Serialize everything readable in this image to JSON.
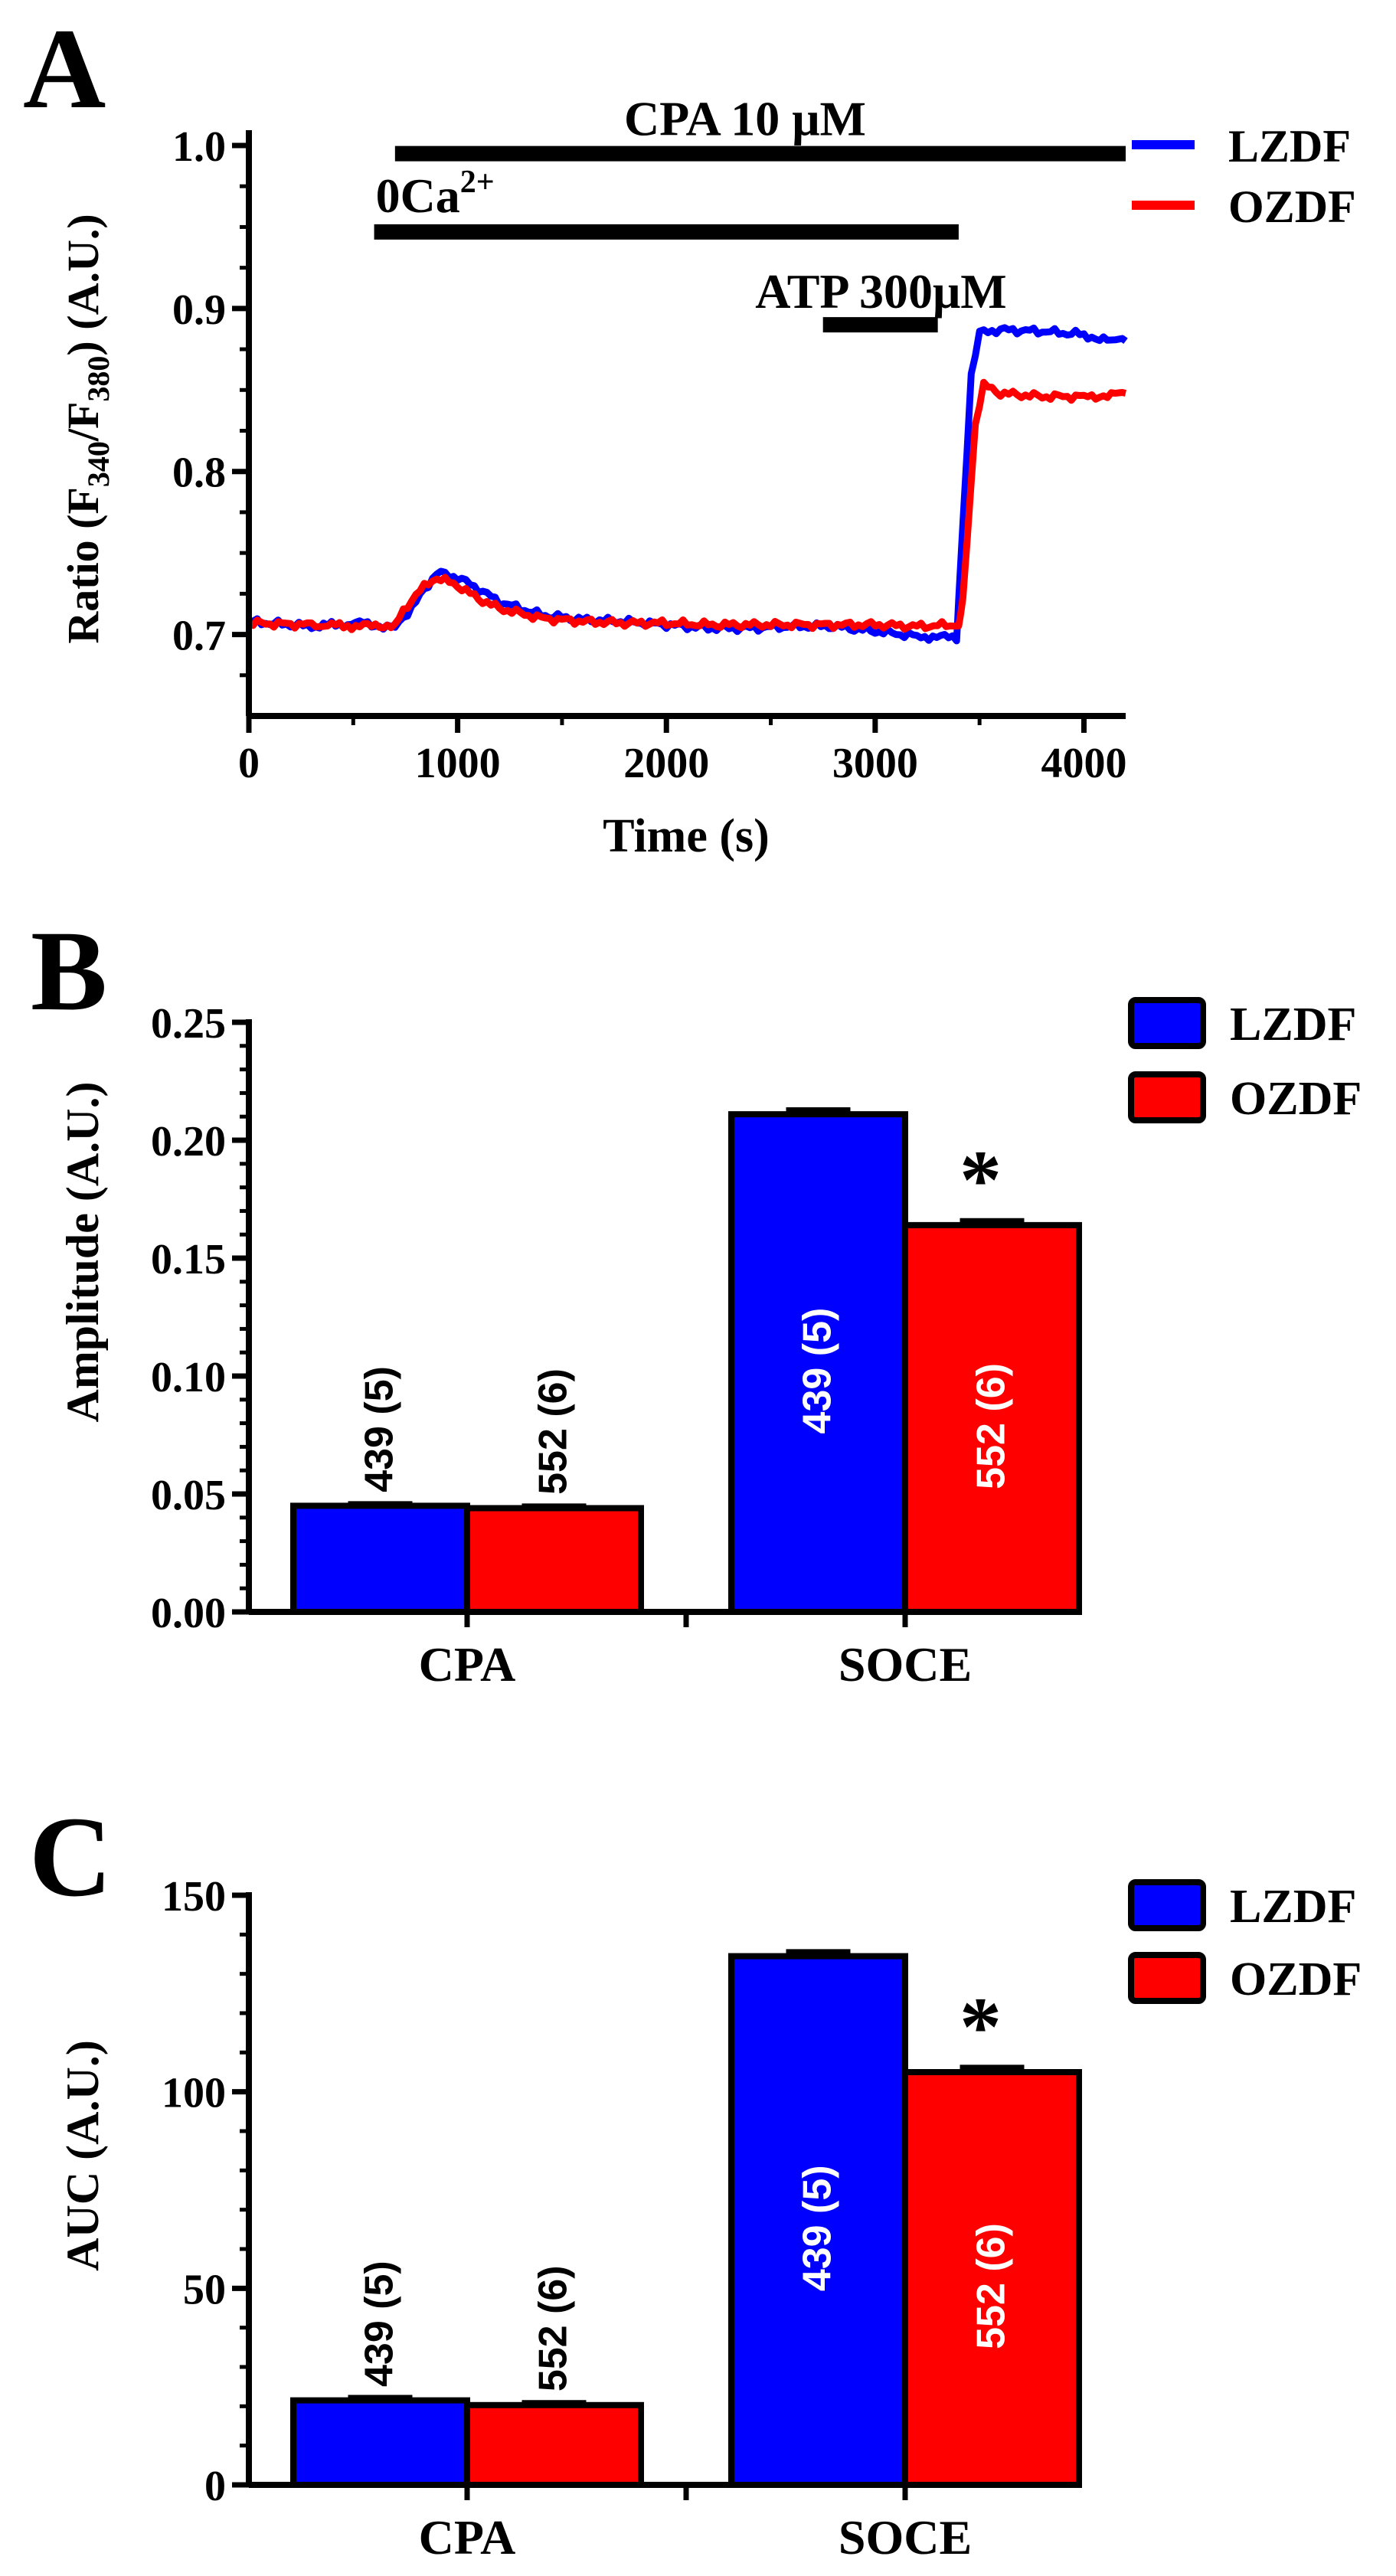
{
  "colors": {
    "lzdf": "#0000ff",
    "ozdf": "#ff0000",
    "axis": "#000000",
    "bar_label_inside": "#ffffff"
  },
  "legend": {
    "lzdf": "LZDF",
    "ozdf": "OZDF"
  },
  "chart_data": [
    {
      "panel_letter": "A",
      "type": "line",
      "xlabel": "Time (s)",
      "ylabel": {
        "main": "Ratio (F",
        "sub1": "340",
        "mid": "/F",
        "sub2": "380",
        "end": ") (A.U.)"
      },
      "xlim": [
        0,
        4200
      ],
      "ylim": [
        0.65,
        1.0
      ],
      "xticks": [
        0,
        1000,
        2000,
        3000,
        4000
      ],
      "xtick_labels": [
        "0",
        "1000",
        "2000",
        "3000",
        "4000"
      ],
      "yticks": [
        0.7,
        0.8,
        0.9,
        1.0
      ],
      "ytick_labels": [
        "0.7",
        "0.8",
        "0.9",
        "1.0"
      ],
      "annotations": {
        "cpa": {
          "label_main": "CPA 10 ",
          "label_mu": "μ",
          "label_unit": "M",
          "start": 700,
          "end": 4200,
          "level": 0.995
        },
        "zero_ca": {
          "label_main": "0Ca",
          "label_sup": "2+",
          "start": 600,
          "end": 3400,
          "level": 0.947
        },
        "atp": {
          "label_main": "ATP ",
          "label_num": "300",
          "label_mu": "μ",
          "label_unit": "M",
          "start": 2750,
          "end": 3300,
          "level": 0.89
        }
      },
      "series": [
        {
          "name": "LZDF",
          "x": [
            0,
            300,
            550,
            700,
            800,
            900,
            1000,
            1100,
            1200,
            1400,
            1600,
            1800,
            2000,
            2200,
            2400,
            2600,
            2800,
            3000,
            3200,
            3390,
            3400,
            3460,
            3500,
            3600,
            3800,
            4000,
            4150,
            4200
          ],
          "y": [
            0.708,
            0.705,
            0.707,
            0.704,
            0.72,
            0.738,
            0.735,
            0.728,
            0.72,
            0.712,
            0.709,
            0.708,
            0.706,
            0.704,
            0.704,
            0.705,
            0.705,
            0.702,
            0.699,
            0.698,
            0.72,
            0.86,
            0.885,
            0.887,
            0.886,
            0.884,
            0.879,
            0.88
          ]
        },
        {
          "name": "OZDF",
          "x": [
            0,
            300,
            550,
            700,
            800,
            900,
            1000,
            1100,
            1200,
            1400,
            1600,
            1800,
            2000,
            2200,
            2400,
            2600,
            2800,
            3000,
            3200,
            3400,
            3420,
            3480,
            3520,
            3600,
            3800,
            4000,
            4150,
            4200
          ],
          "y": [
            0.707,
            0.706,
            0.705,
            0.706,
            0.725,
            0.735,
            0.73,
            0.722,
            0.716,
            0.71,
            0.708,
            0.707,
            0.707,
            0.706,
            0.706,
            0.706,
            0.706,
            0.706,
            0.705,
            0.706,
            0.72,
            0.83,
            0.853,
            0.848,
            0.846,
            0.846,
            0.847,
            0.848
          ]
        }
      ]
    },
    {
      "panel_letter": "B",
      "type": "bar",
      "ylabel": "Amplitude (A.U.)",
      "ylim": [
        0,
        0.25
      ],
      "yticks": [
        0,
        0.05,
        0.1,
        0.15,
        0.2,
        0.25
      ],
      "ytick_labels": [
        "0.00",
        "0.05",
        "0.10",
        "0.15",
        "0.20",
        "0.25"
      ],
      "categories": [
        "CPA",
        "SOCE"
      ],
      "series": [
        {
          "name": "LZDF",
          "values": [
            0.045,
            0.211
          ],
          "errors": [
            0.001,
            0.002
          ],
          "n_labels": [
            "439 (5)",
            "439 (5)"
          ]
        },
        {
          "name": "OZDF",
          "values": [
            0.044,
            0.164
          ],
          "errors": [
            0.001,
            0.002
          ],
          "n_labels": [
            "552 (6)",
            "552 (6)"
          ]
        }
      ],
      "significance": {
        "category": "SOCE",
        "series": "OZDF",
        "mark": "*"
      }
    },
    {
      "panel_letter": "C",
      "type": "bar",
      "ylabel": "AUC (A.U.)",
      "ylim": [
        0,
        150
      ],
      "yticks": [
        0,
        50,
        100,
        150
      ],
      "ytick_labels": [
        "0",
        "50",
        "100",
        "150"
      ],
      "categories": [
        "CPA",
        "SOCE"
      ],
      "series": [
        {
          "name": "LZDF",
          "values": [
            21.5,
            134.5
          ],
          "errors": [
            0.8,
            1.2
          ],
          "n_labels": [
            "439 (5)",
            "439 (5)"
          ]
        },
        {
          "name": "OZDF",
          "values": [
            20.3,
            105.0
          ],
          "errors": [
            0.7,
            1.3
          ],
          "n_labels": [
            "552 (6)",
            "552 (6)"
          ]
        }
      ],
      "significance": {
        "category": "SOCE",
        "series": "OZDF",
        "mark": "*"
      }
    }
  ]
}
